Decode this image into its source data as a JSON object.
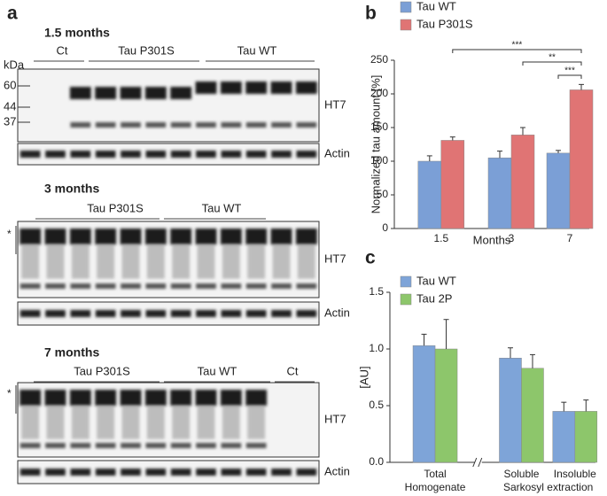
{
  "panels": {
    "a": "a",
    "b": "b",
    "c": "c"
  },
  "blots": [
    {
      "title": "1.5 months",
      "groups": [
        "Ct",
        "Tau P301S",
        "Tau WT"
      ],
      "unit": "kDa",
      "markers": [
        "60",
        "44",
        "37"
      ],
      "labels": [
        "HT7",
        "Actin"
      ]
    },
    {
      "title": "3 months",
      "groups": [
        "Tau P301S",
        "Tau WT"
      ],
      "star": "*",
      "labels": [
        "HT7",
        "Actin"
      ]
    },
    {
      "title": "7 months",
      "groups": [
        "Tau P301S",
        "Tau WT",
        "Ct"
      ],
      "star": "*",
      "labels": [
        "HT7",
        "Actin"
      ]
    }
  ],
  "chart_data": [
    {
      "type": "bar",
      "ylabel": "Normalized tau amount [%]",
      "xlabel": "Months",
      "categories": [
        "1.5",
        "3",
        "7"
      ],
      "series": [
        {
          "name": "Tau WT",
          "color": "#7b9fd6",
          "values": [
            100,
            105,
            112
          ],
          "errors": [
            8,
            10,
            4
          ]
        },
        {
          "name": "Tau P301S",
          "color": "#e07474",
          "values": [
            131,
            139,
            206
          ],
          "errors": [
            5,
            11,
            8
          ]
        }
      ],
      "ylim": [
        0,
        250
      ],
      "yticks": [
        0,
        50,
        100,
        150,
        200,
        250
      ],
      "legend": "top-left",
      "annotations": [
        "***",
        "**",
        "***"
      ]
    },
    {
      "type": "bar",
      "ylabel": "[AU]",
      "categories": [
        "Total",
        "Soluble",
        "Insoluble"
      ],
      "x_group_labels": [
        "Homogenate",
        "Sarkosyl extraction"
      ],
      "series": [
        {
          "name": "Tau WT",
          "color": "#7ea4d8",
          "values": [
            1.03,
            0.92,
            0.45
          ],
          "errors": [
            0.1,
            0.09,
            0.08
          ]
        },
        {
          "name": "Tau 2P",
          "color": "#8dc66b",
          "values": [
            1.0,
            0.83,
            0.45
          ],
          "errors": [
            0.26,
            0.12,
            0.1
          ]
        }
      ],
      "ylim": [
        0,
        1.5
      ],
      "yticks": [
        {
          "value": 0,
          "label": "0.0"
        },
        0.5,
        {
          "value": 1,
          "label": "1.0"
        },
        1.5
      ],
      "legend": "top-left"
    }
  ]
}
